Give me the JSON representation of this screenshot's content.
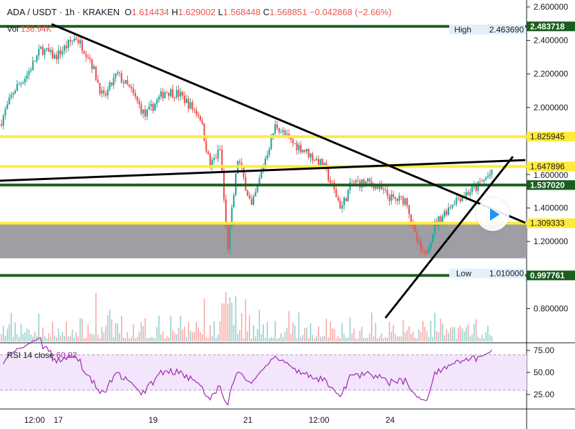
{
  "header": {
    "symbol": "ADA / USDT",
    "interval": "1h",
    "exchange": "KRAKEN",
    "o_label": "O",
    "open": "1.614434",
    "h_label": "H",
    "high": "1.629002",
    "l_label": "L",
    "low": "1.568448",
    "c_label": "C",
    "close": "1.568851",
    "change": "−0.042868 (−2.66%)"
  },
  "volume": {
    "label": "Vol",
    "value": "136.94K"
  },
  "rsi": {
    "label": "RSI 14 close",
    "value": "60.92"
  },
  "chart_data": {
    "type": "candlestick",
    "price_ticks": [
      "2.600000",
      "2.400000",
      "2.200000",
      "2.000000",
      "1.600000",
      "1.400000",
      "1.200000",
      "0.800000"
    ],
    "price_tick_values": [
      2.6,
      2.4,
      2.2,
      2.0,
      1.6,
      1.4,
      1.2,
      0.8
    ],
    "time_ticks": [
      {
        "label": "12:00",
        "day": 16.5
      },
      {
        "label": "17",
        "day": 17
      },
      {
        "label": "19",
        "day": 19
      },
      {
        "label": "21",
        "day": 21
      },
      {
        "label": "12:00",
        "day": 22.5
      },
      {
        "label": "24",
        "day": 24
      }
    ],
    "rsi_ticks": [
      75,
      50,
      25
    ],
    "rsi_band": [
      30,
      70
    ],
    "price_path": [
      [
        15.77,
        1.9
      ],
      [
        16.06,
        2.1
      ],
      [
        16.35,
        2.2
      ],
      [
        16.64,
        2.35
      ],
      [
        16.93,
        2.3
      ],
      [
        17.37,
        2.42
      ],
      [
        17.66,
        2.3
      ],
      [
        17.95,
        2.05
      ],
      [
        18.24,
        2.2
      ],
      [
        18.53,
        2.1
      ],
      [
        18.83,
        1.95
      ],
      [
        19.26,
        2.1
      ],
      [
        19.55,
        2.08
      ],
      [
        19.99,
        1.95
      ],
      [
        20.2,
        1.65
      ],
      [
        20.42,
        1.75
      ],
      [
        20.57,
        1.15
      ],
      [
        20.79,
        1.7
      ],
      [
        21.08,
        1.4
      ],
      [
        21.37,
        1.7
      ],
      [
        21.59,
        1.9
      ],
      [
        21.88,
        1.8
      ],
      [
        22.17,
        1.75
      ],
      [
        22.6,
        1.65
      ],
      [
        22.75,
        1.55
      ],
      [
        22.97,
        1.4
      ],
      [
        23.19,
        1.55
      ],
      [
        23.62,
        1.55
      ],
      [
        24.06,
        1.45
      ],
      [
        24.35,
        1.45
      ],
      [
        24.5,
        1.25
      ],
      [
        24.72,
        1.1
      ],
      [
        24.94,
        1.3
      ],
      [
        25.37,
        1.45
      ],
      [
        25.81,
        1.52
      ],
      [
        26.1,
        1.6
      ]
    ],
    "levels": [
      {
        "price": 2.483718,
        "label": "2.483718",
        "color": "#1b5e20",
        "type": "green"
      },
      {
        "price": 1.825945,
        "label": "1.825945",
        "color": "#ffeb3b",
        "type": "yellow"
      },
      {
        "price": 1.647896,
        "label": "1.647896",
        "color": "#ffeb3b",
        "type": "yellow"
      },
      {
        "price": 1.53702,
        "label": "1.537020",
        "color": "#1b5e20",
        "type": "green"
      },
      {
        "price": 1.309333,
        "label": "1.309333",
        "color": "#ffeb3b",
        "type": "yellow"
      },
      {
        "price": 0.997761,
        "label": "0.997761",
        "color": "#1b5e20",
        "type": "green"
      }
    ],
    "high_marker": {
      "label": "High",
      "value": "2.463690",
      "price": 2.46369
    },
    "low_marker": {
      "label": "Low",
      "value": "1.010000",
      "price": 1.01
    },
    "zone": [
      1.1,
      1.309333
    ],
    "trendlines": [
      [
        [
          16.86,
          2.497
        ],
        [
          26.85,
          1.312
        ]
      ],
      [
        [
          15.77,
          1.563
        ],
        [
          26.85,
          1.686
        ]
      ],
      [
        [
          23.9,
          0.744
        ],
        [
          26.59,
          1.707
        ]
      ]
    ],
    "colors": {
      "up": "#26a69a",
      "down": "#ef5350",
      "rsi": "#9c27b0"
    }
  }
}
